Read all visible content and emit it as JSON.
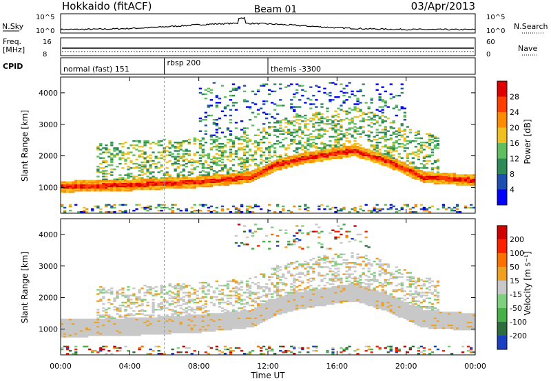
{
  "header": {
    "station": "Hokkaido (fitACF)",
    "beam": "Beam 01",
    "date": "03/Apr/2013"
  },
  "noise_panel": {
    "left_label": "N.Sky",
    "right_label": "N.Search",
    "left_ticks": [
      "10^5",
      "10^0"
    ],
    "right_ticks": [
      "10^5",
      "10^0"
    ]
  },
  "freq_panel": {
    "left_label_1": "Freq.",
    "left_label_2": "[MHz]",
    "right_label": "Nave",
    "left_ticks": [
      "16",
      "8"
    ],
    "right_ticks": [
      "60",
      "0"
    ]
  },
  "cpid_panel": {
    "label": "CPID",
    "segments": [
      {
        "label": "normal (fast) 151",
        "start_hour": 0,
        "end_hour": 6
      },
      {
        "label": "rbsp 200",
        "start_hour": 6,
        "end_hour": 12
      },
      {
        "label": "themis -3300",
        "start_hour": 12,
        "end_hour": 24
      }
    ]
  },
  "power_panel": {
    "ylabel": "Slant Range [km]",
    "yticks": [
      "1000",
      "2000",
      "3000",
      "4000"
    ],
    "colorbar_label": "Power [dB]",
    "colorbar_ticks": [
      "4",
      "8",
      "12",
      "16",
      "20",
      "24",
      "28"
    ],
    "colors": [
      "#0000ff",
      "#1f4fb0",
      "#2e8b57",
      "#5fbf5f",
      "#f0c020",
      "#ff8c00",
      "#ff4000",
      "#e00000"
    ]
  },
  "velocity_panel": {
    "ylabel": "Slant Range [km]",
    "yticks": [
      "1000",
      "2000",
      "3000",
      "4000"
    ],
    "colorbar_label": "Velocity [m s⁻¹]",
    "colorbar_ticks": [
      "200",
      "100",
      "50",
      "15",
      "-15",
      "-50",
      "-100",
      "-200"
    ],
    "colors": [
      "#1a3fc0",
      "#2e6e3e",
      "#48b048",
      "#7ed07e",
      "#c8c8c8",
      "#f0a020",
      "#ff7000",
      "#ff2000",
      "#d00000"
    ]
  },
  "xaxis": {
    "label": "Time UT",
    "ticks": [
      "00:00",
      "04:00",
      "08:00",
      "12:00",
      "16:00",
      "20:00",
      "00:00"
    ]
  },
  "chart_data": {
    "type": "heatmap",
    "x_range_hours": [
      0,
      24
    ],
    "y_range_km": [
      180,
      4500
    ],
    "power_band_km": [
      {
        "hour": 0,
        "range": 1000
      },
      {
        "hour": 4,
        "range": 1050
      },
      {
        "hour": 8,
        "range": 1150
      },
      {
        "hour": 11,
        "range": 1300
      },
      {
        "hour": 12.5,
        "range": 1700
      },
      {
        "hour": 14,
        "range": 1900
      },
      {
        "hour": 17,
        "range": 2150
      },
      {
        "hour": 19,
        "range": 1800
      },
      {
        "hour": 21,
        "range": 1300
      },
      {
        "hour": 24,
        "range": 1200
      }
    ],
    "noise_peak_hour": 10.5
  }
}
